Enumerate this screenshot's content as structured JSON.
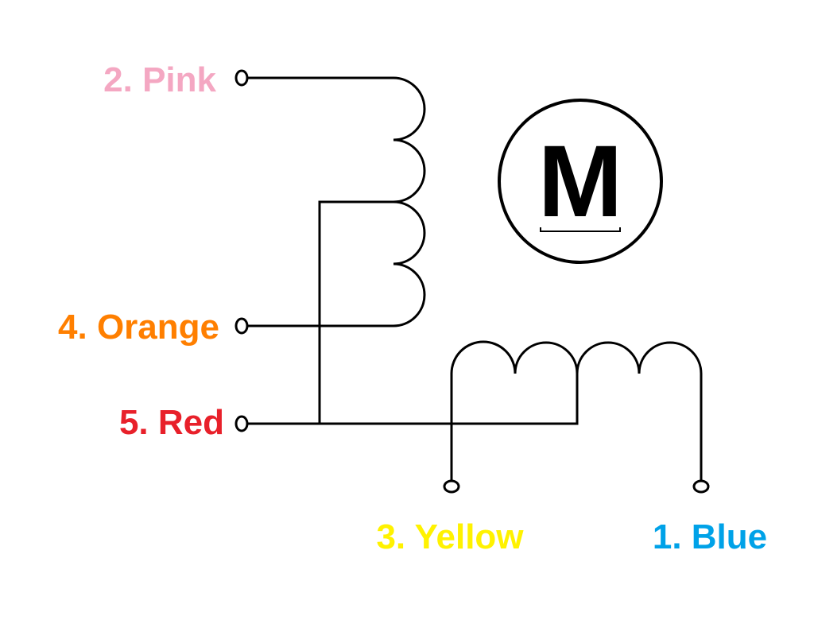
{
  "motor": {
    "symbol": "M"
  },
  "wires": {
    "pink": {
      "label": "2. Pink",
      "color": "#F4A7C2"
    },
    "orange": {
      "label": "4. Orange",
      "color": "#FF7F00"
    },
    "red": {
      "label": "5. Red",
      "color": "#E8202A"
    },
    "yellow": {
      "label": "3. Yellow",
      "color": "#FFF200"
    },
    "blue": {
      "label": "1. Blue",
      "color": "#00A2E8"
    }
  }
}
